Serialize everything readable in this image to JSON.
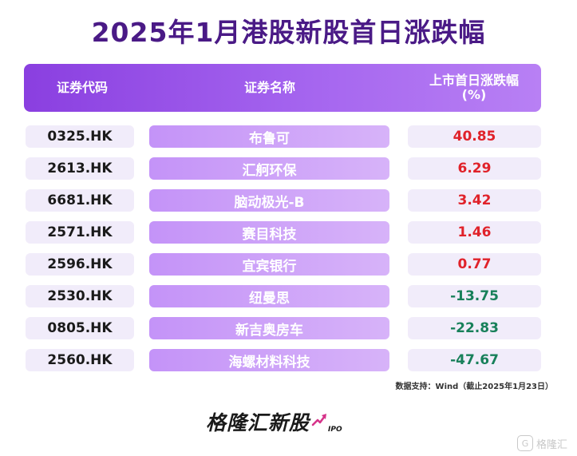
{
  "title": "2025年1月港股新股首日涨跌幅",
  "header": {
    "code": "证券代码",
    "name": "证券名称",
    "change_line1": "上市首日涨跌幅",
    "change_line2": "(%)"
  },
  "rows": [
    {
      "code": "0325.HK",
      "name": "布鲁可",
      "change": "40.85"
    },
    {
      "code": "2613.HK",
      "name": "汇舸环保",
      "change": "6.29"
    },
    {
      "code": "6681.HK",
      "name": "脑动极光-B",
      "change": "3.42"
    },
    {
      "code": "2571.HK",
      "name": "赛目科技",
      "change": "1.46"
    },
    {
      "code": "2596.HK",
      "name": "宜宾银行",
      "change": "0.77"
    },
    {
      "code": "2530.HK",
      "name": "纽曼思",
      "change": "-13.75"
    },
    {
      "code": "0805.HK",
      "name": "新吉奥房车",
      "change": "-22.83"
    },
    {
      "code": "2560.HK",
      "name": "海螺材料科技",
      "change": "-47.67"
    }
  ],
  "source": "数据支持：Wind（截止2025年1月23日）",
  "brand": {
    "main": "格隆汇新股",
    "sub": "IPO"
  },
  "watermark": {
    "logo": "G",
    "text": "格隆汇"
  },
  "colors": {
    "positive": "#e0222a",
    "negative": "#18805a",
    "header": "#8a3fe0",
    "title": "#4a1a86"
  }
}
